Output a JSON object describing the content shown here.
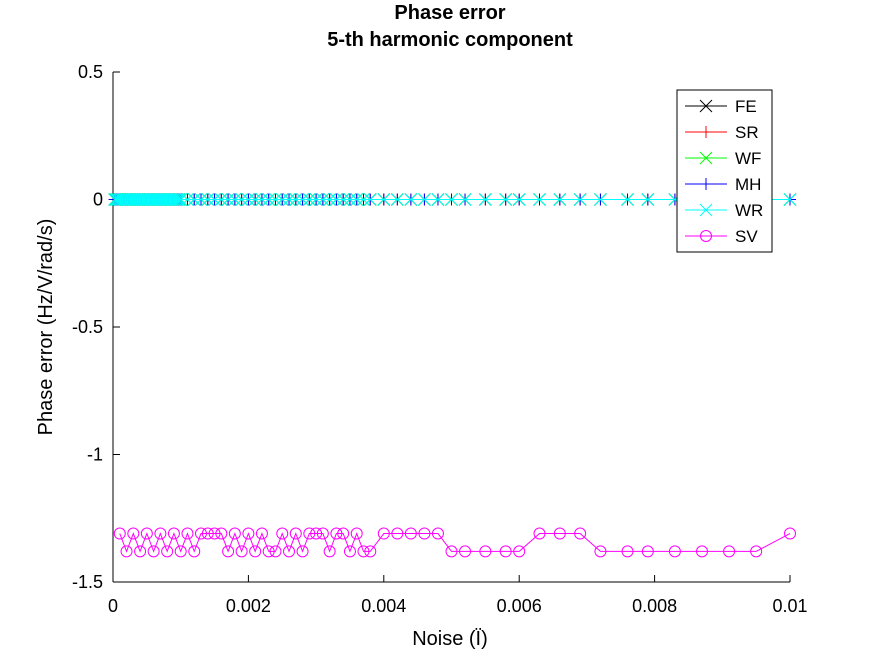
{
  "chart_data": {
    "type": "line",
    "title": "Phase error",
    "subtitle": "5-th harmonic component",
    "xlabel": "Noise (Ï)",
    "ylabel": "Phase error (Hz/V/rad/s)",
    "xlim": [
      0,
      0.01
    ],
    "ylim": [
      -1.5,
      0.5
    ],
    "xticks": [
      0,
      0.002,
      0.004,
      0.006,
      0.008,
      0.01
    ],
    "xtick_labels": [
      "0",
      "0.002",
      "0.004",
      "0.006",
      "0.008",
      "0.01"
    ],
    "yticks": [
      -1.5,
      -1,
      -0.5,
      0,
      0.5
    ],
    "ytick_labels": [
      "-1.5",
      "-1",
      "-0.5",
      "0",
      "0.5"
    ],
    "grid": false,
    "legend_position": "top-right",
    "series": [
      {
        "name": "FE",
        "color": "#000000",
        "marker": "x",
        "y": 0
      },
      {
        "name": "SR",
        "color": "#ff0000",
        "marker": "+",
        "y": 0
      },
      {
        "name": "WF",
        "color": "#00ff00",
        "marker": "x",
        "y": 0
      },
      {
        "name": "MH",
        "color": "#0000ff",
        "marker": "+",
        "y": 0
      },
      {
        "name": "WR",
        "color": "#00ffff",
        "marker": "x",
        "y": 0
      },
      {
        "name": "SV",
        "color": "#ff00ff",
        "marker": "o",
        "x": [
          0.0001,
          0.0002,
          0.0003,
          0.0004,
          0.0005,
          0.0006,
          0.0007,
          0.0008,
          0.0009,
          0.001,
          0.0011,
          0.0012,
          0.0013,
          0.0014,
          0.0015,
          0.0016,
          0.0017,
          0.0018,
          0.0019,
          0.002,
          0.0021,
          0.0022,
          0.0023,
          0.0024,
          0.0025,
          0.0026,
          0.0027,
          0.0028,
          0.0029,
          0.003,
          0.0031,
          0.0032,
          0.0033,
          0.0034,
          0.0035,
          0.0036,
          0.0037,
          0.0038,
          0.004,
          0.0042,
          0.0044,
          0.0046,
          0.0048,
          0.005,
          0.0052,
          0.0055,
          0.0058,
          0.006,
          0.0063,
          0.0066,
          0.0069,
          0.0072,
          0.0076,
          0.0079,
          0.0083,
          0.0087,
          0.0091,
          0.0095,
          0.01
        ],
        "y": [
          -1.31,
          -1.38,
          -1.31,
          -1.38,
          -1.31,
          -1.38,
          -1.31,
          -1.38,
          -1.31,
          -1.38,
          -1.31,
          -1.38,
          -1.31,
          -1.31,
          -1.31,
          -1.31,
          -1.38,
          -1.31,
          -1.38,
          -1.31,
          -1.38,
          -1.31,
          -1.38,
          -1.38,
          -1.31,
          -1.38,
          -1.31,
          -1.38,
          -1.31,
          -1.31,
          -1.31,
          -1.38,
          -1.31,
          -1.31,
          -1.38,
          -1.31,
          -1.38,
          -1.38,
          -1.31,
          -1.31,
          -1.31,
          -1.31,
          -1.31,
          -1.38,
          -1.38,
          -1.38,
          -1.38,
          -1.38,
          -1.31,
          -1.31,
          -1.31,
          -1.38,
          -1.38,
          -1.38,
          -1.38,
          -1.38,
          -1.38,
          -1.38,
          -1.31
        ]
      }
    ]
  }
}
